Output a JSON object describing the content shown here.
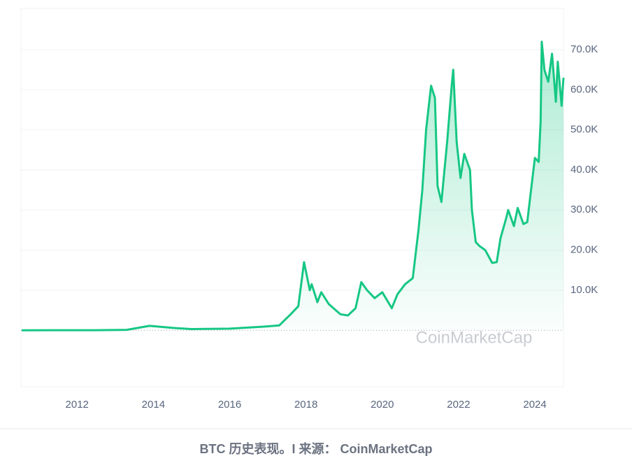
{
  "chart_data": {
    "type": "line",
    "caption": "BTC 历史表现。I 来源： CoinMarketCap",
    "watermark": "CoinMarketCap",
    "xlim": [
      2010.53,
      2024.75
    ],
    "xticks": [
      2012,
      2014,
      2016,
      2018,
      2020,
      2022,
      2024
    ],
    "ylim": [
      -14100,
      80300
    ],
    "yticks": [
      {
        "value": 10000,
        "label": "10.0K"
      },
      {
        "value": 20000,
        "label": "20.0K"
      },
      {
        "value": 30000,
        "label": "30.0K"
      },
      {
        "value": 40000,
        "label": "40.0K"
      },
      {
        "value": 50000,
        "label": "50.0K"
      },
      {
        "value": 60000,
        "label": "60.0K"
      },
      {
        "value": 70000,
        "label": "70.0K"
      }
    ],
    "grid": true,
    "x": [
      2010.55,
      2011.5,
      2012.5,
      2013.3,
      2013.9,
      2014.5,
      2015.0,
      2016.0,
      2016.9,
      2017.3,
      2017.6,
      2017.8,
      2017.95,
      2018.1,
      2018.15,
      2018.3,
      2018.4,
      2018.6,
      2018.9,
      2019.1,
      2019.3,
      2019.45,
      2019.6,
      2019.8,
      2020.0,
      2020.25,
      2020.4,
      2020.6,
      2020.8,
      2020.95,
      2021.05,
      2021.15,
      2021.28,
      2021.38,
      2021.45,
      2021.55,
      2021.7,
      2021.82,
      2021.86,
      2021.95,
      2022.05,
      2022.15,
      2022.3,
      2022.35,
      2022.45,
      2022.55,
      2022.7,
      2022.88,
      2023.0,
      2023.1,
      2023.25,
      2023.3,
      2023.45,
      2023.55,
      2023.7,
      2023.8,
      2023.9,
      2024.0,
      2024.1,
      2024.15,
      2024.18,
      2024.25,
      2024.35,
      2024.45,
      2024.55,
      2024.6,
      2024.7,
      2024.75
    ],
    "series": [
      {
        "name": "BTC",
        "color": "#16c784",
        "values": [
          0,
          10,
          12,
          100,
          1100,
          600,
          300,
          400,
          900,
          1200,
          4000,
          6000,
          17000,
          10000,
          11500,
          7000,
          9500,
          6500,
          4000,
          3700,
          5500,
          12000,
          10000,
          8000,
          9500,
          5500,
          9000,
          11500,
          13000,
          25000,
          35000,
          50000,
          61000,
          58000,
          36000,
          32000,
          47000,
          61000,
          65000,
          47000,
          38000,
          44000,
          40000,
          30000,
          22000,
          21000,
          20000,
          16800,
          17000,
          23000,
          28000,
          30000,
          26000,
          30500,
          26500,
          27000,
          35000,
          43000,
          42000,
          52000,
          72000,
          65000,
          62000,
          69000,
          57000,
          67000,
          56000,
          63000
        ]
      }
    ]
  }
}
